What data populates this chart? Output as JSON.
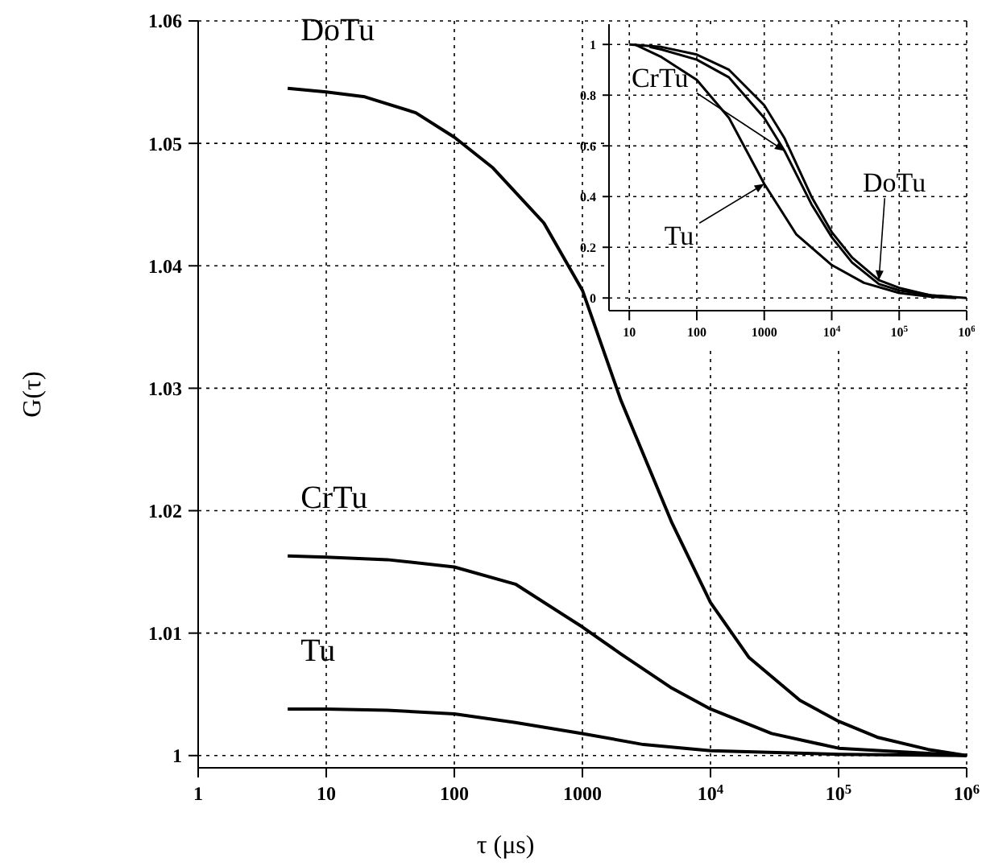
{
  "chart_data": [
    {
      "type": "line",
      "xlabel": "τ (μs)",
      "ylabel": "G(τ)",
      "log": "x",
      "grid": true,
      "marker": "none",
      "line_style": "solid",
      "xlim": [
        1,
        1000000
      ],
      "xticks": [
        1,
        10,
        100,
        1000,
        {
          "value": 10000,
          "label": "10$^{4}$"
        },
        {
          "value": 100000,
          "label": "10$^{5}$"
        },
        {
          "value": 1000000,
          "label": "10$^{6}$"
        }
      ],
      "ylim": [
        0.999,
        1.06
      ],
      "yticks": [
        1,
        1.01,
        1.02,
        1.03,
        1.04,
        1.05,
        1.06
      ],
      "series": [
        {
          "name": "DoTu",
          "color": "#000000",
          "x": [
            5,
            10,
            20,
            50,
            100,
            200,
            500,
            1000,
            2000,
            5000,
            10000,
            20000,
            50000,
            100000,
            200000,
            500000,
            1000000
          ],
          "values": [
            1.0545,
            1.0542,
            1.0538,
            1.0525,
            1.0505,
            1.048,
            1.0435,
            1.038,
            1.029,
            1.019,
            1.0125,
            1.008,
            1.0045,
            1.0028,
            1.0015,
            1.0005,
            1.0
          ]
        },
        {
          "name": "CrTu",
          "color": "#000000",
          "x": [
            5,
            10,
            30,
            100,
            300,
            1000,
            2000,
            5000,
            10000,
            30000,
            100000,
            1000000
          ],
          "values": [
            1.0163,
            1.0162,
            1.016,
            1.0154,
            1.014,
            1.0105,
            1.0083,
            1.0055,
            1.0038,
            1.0018,
            1.0006,
            1.0
          ]
        },
        {
          "name": "Tu",
          "color": "#000000",
          "x": [
            5,
            10,
            30,
            100,
            300,
            1000,
            3000,
            10000,
            100000,
            1000000
          ],
          "values": [
            1.0038,
            1.0038,
            1.0037,
            1.0034,
            1.0027,
            1.0018,
            1.0009,
            1.0004,
            1.0001,
            1.0
          ]
        }
      ]
    },
    {
      "type": "line",
      "log": "x",
      "grid": true,
      "marker": "none",
      "xlim": [
        5,
        1000000
      ],
      "xticks": [
        10,
        100,
        1000,
        {
          "value": 10000,
          "label": "10$^{4}$"
        },
        {
          "value": 100000,
          "label": "10$^{5}$"
        },
        {
          "value": 1000000,
          "label": "10$^{6}$"
        }
      ],
      "ylim": [
        -0.05,
        1.08
      ],
      "yticks": [
        0,
        0.2,
        0.4,
        0.6,
        0.8,
        1
      ],
      "series": [
        {
          "name": "DoTu",
          "color": "#000000",
          "line_style": "solid",
          "x": [
            10,
            30,
            100,
            300,
            1000,
            2000,
            5000,
            10000,
            20000,
            50000,
            100000,
            300000,
            1000000
          ],
          "values": [
            1.0,
            0.99,
            0.96,
            0.9,
            0.76,
            0.63,
            0.4,
            0.26,
            0.16,
            0.07,
            0.04,
            0.01,
            0
          ]
        },
        {
          "name": "CrTu",
          "color": "#000000",
          "line_style": "solid",
          "x": [
            20,
            30,
            100,
            300,
            1000,
            2000,
            5000,
            10000,
            20000,
            50000,
            100000,
            300000,
            600000
          ],
          "values": [
            0.99,
            0.98,
            0.94,
            0.87,
            0.71,
            0.58,
            0.37,
            0.24,
            0.14,
            0.055,
            0.03,
            0.01,
            0.005
          ]
        },
        {
          "name": "Tu",
          "color": "#000000",
          "line_style": "solid",
          "x": [
            12,
            30,
            100,
            300,
            1000,
            3000,
            10000,
            30000,
            100000,
            300000,
            700000
          ],
          "values": [
            1.0,
            0.95,
            0.86,
            0.71,
            0.45,
            0.25,
            0.13,
            0.06,
            0.02,
            0.005,
            0
          ]
        }
      ]
    }
  ]
}
